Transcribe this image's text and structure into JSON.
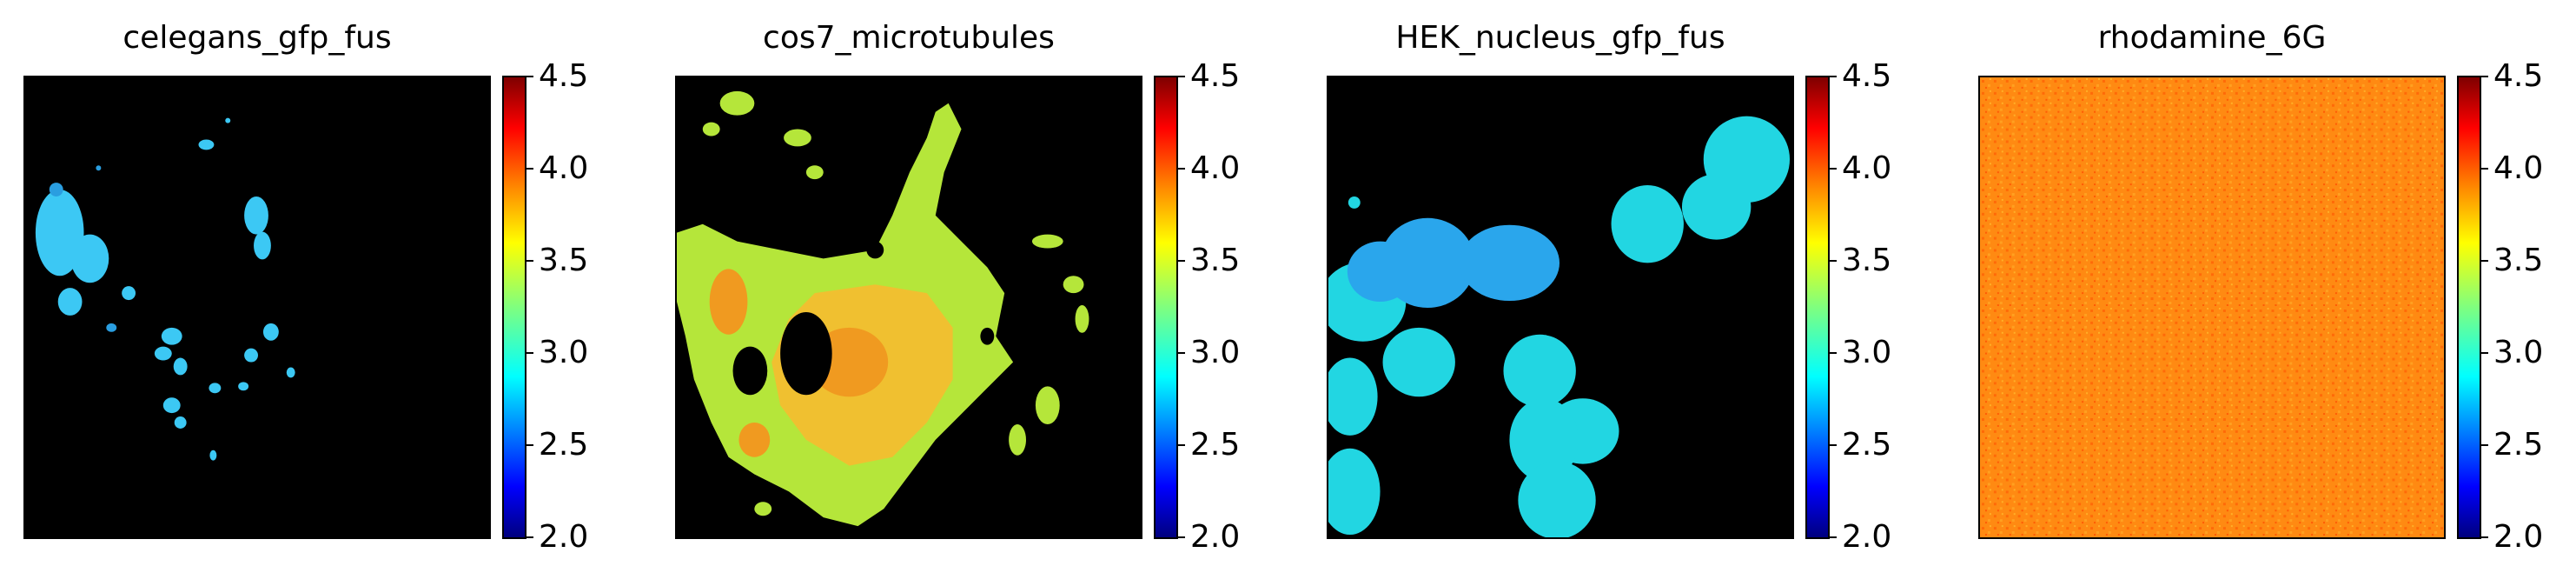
{
  "panels": [
    {
      "title": "celegans_gfp_fus"
    },
    {
      "title": "cos7_microtubules"
    },
    {
      "title": "HEK_nucleus_gfp_fus"
    },
    {
      "title": "rhodamine_6G"
    }
  ],
  "colorbar": {
    "colormap": "jet",
    "min": 2.0,
    "max": 4.5,
    "ticks": [
      "4.5",
      "4.0",
      "3.5",
      "3.0",
      "2.5",
      "2.0"
    ]
  },
  "colors": {
    "background": "#000000",
    "celegans": "#2fc8f0",
    "cos7_low": "#b8e83c",
    "cos7_high": "#f0a020",
    "hek": "#20d8e0",
    "rhodamine": "#ff8a10"
  }
}
